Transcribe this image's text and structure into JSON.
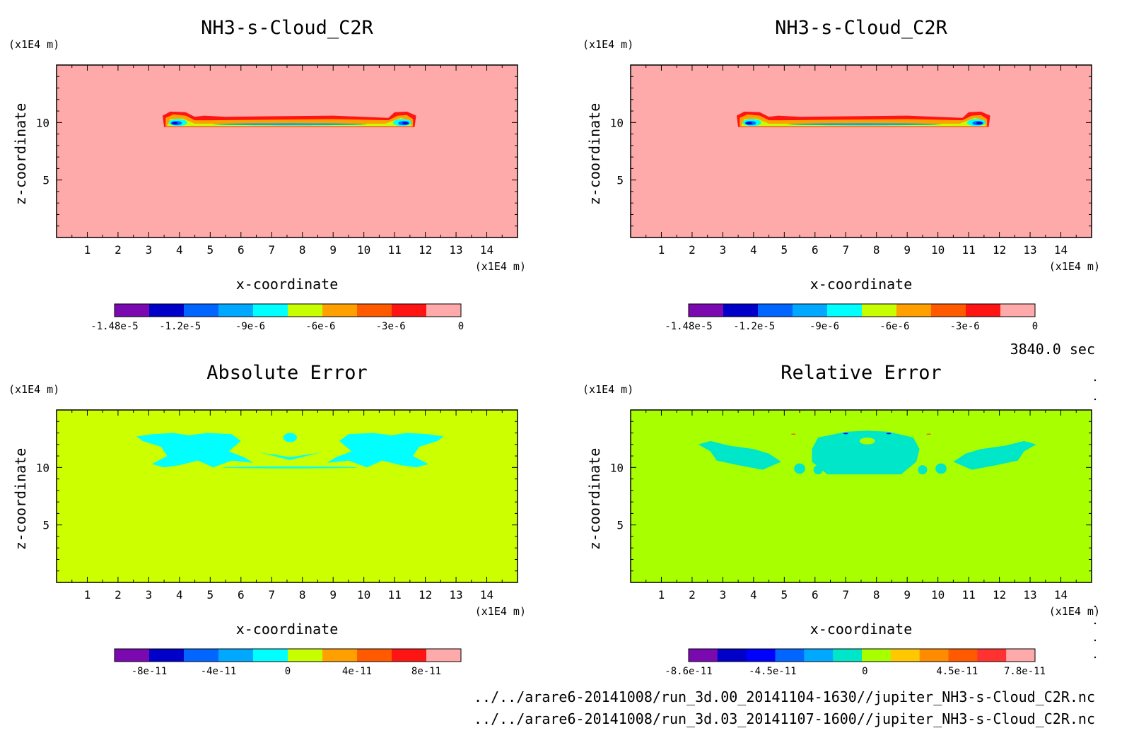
{
  "chart_data": [
    {
      "type": "heatmap",
      "title": "NH3-s-Cloud_C2R",
      "xlabel": "x-coordinate",
      "ylabel": "z-coordinate",
      "x_unit": "(x1E4 m)",
      "y_unit": "(x1E4 m)",
      "xlim": [
        0,
        15
      ],
      "ylim": [
        0,
        15
      ],
      "x_ticks": [
        "1",
        "2",
        "3",
        "4",
        "5",
        "6",
        "7",
        "8",
        "9",
        "10",
        "11",
        "12",
        "13",
        "14"
      ],
      "y_ticks": [
        "5",
        "10"
      ],
      "background_color": "#ffaaaa",
      "feature": "cloud",
      "colorbar": {
        "colors": [
          "#7a0ab0",
          "#0000c8",
          "#0066ff",
          "#00a8ff",
          "#00ffff",
          "#c8ff00",
          "#ffa000",
          "#ff5a00",
          "#ff1414",
          "#ffaaaa"
        ],
        "labels": [
          "-1.48e-5",
          "-1.2e-5",
          "-9e-6",
          "-6e-6",
          "-3e-6",
          "0"
        ],
        "label_values": [
          -1.48e-05,
          -1.2e-05,
          -9e-06,
          -6e-06,
          -3e-06,
          0
        ],
        "range": [
          -1.48e-05,
          0
        ]
      }
    },
    {
      "type": "heatmap",
      "title": "NH3-s-Cloud_C2R",
      "xlabel": "x-coordinate",
      "ylabel": "z-coordinate",
      "x_unit": "(x1E4 m)",
      "y_unit": "(x1E4 m)",
      "xlim": [
        0,
        15
      ],
      "ylim": [
        0,
        15
      ],
      "x_ticks": [
        "1",
        "2",
        "3",
        "4",
        "5",
        "6",
        "7",
        "8",
        "9",
        "10",
        "11",
        "12",
        "13",
        "14"
      ],
      "y_ticks": [
        "5",
        "10"
      ],
      "background_color": "#ffaaaa",
      "feature": "cloud",
      "colorbar": {
        "colors": [
          "#7a0ab0",
          "#0000c8",
          "#0066ff",
          "#00a8ff",
          "#00ffff",
          "#c8ff00",
          "#ffa000",
          "#ff5a00",
          "#ff1414",
          "#ffaaaa"
        ],
        "labels": [
          "-1.48e-5",
          "-1.2e-5",
          "-9e-6",
          "-6e-6",
          "-3e-6",
          "0"
        ],
        "label_values": [
          -1.48e-05,
          -1.2e-05,
          -9e-06,
          -6e-06,
          -3e-06,
          0
        ],
        "range": [
          -1.48e-05,
          0
        ]
      }
    },
    {
      "type": "heatmap",
      "title": "Absolute Error",
      "xlabel": "x-coordinate",
      "ylabel": "z-coordinate",
      "x_unit": "(x1E4 m)",
      "y_unit": "(x1E4 m)",
      "xlim": [
        0,
        15
      ],
      "ylim": [
        0,
        15
      ],
      "x_ticks": [
        "1",
        "2",
        "3",
        "4",
        "5",
        "6",
        "7",
        "8",
        "9",
        "10",
        "11",
        "12",
        "13",
        "14"
      ],
      "y_ticks": [
        "5",
        "10"
      ],
      "background_color": "#ccff00",
      "feature": "abs_error",
      "colorbar": {
        "colors": [
          "#7a0ab0",
          "#0000c8",
          "#0066ff",
          "#00a8ff",
          "#00ffff",
          "#c8ff00",
          "#ffa000",
          "#ff5a00",
          "#ff1414",
          "#ffaaaa"
        ],
        "labels": [
          "-8e-11",
          "-4e-11",
          "0",
          "4e-11",
          "8e-11"
        ],
        "label_values": [
          -8e-11,
          -4e-11,
          0,
          4e-11,
          8e-11
        ],
        "range": [
          -1e-10,
          1e-10
        ]
      }
    },
    {
      "type": "heatmap",
      "title": "Relative Error",
      "xlabel": "x-coordinate",
      "ylabel": "z-coordinate",
      "x_unit": "(x1E4 m)",
      "y_unit": "(x1E4 m)",
      "xlim": [
        0,
        15
      ],
      "ylim": [
        0,
        15
      ],
      "x_ticks": [
        "1",
        "2",
        "3",
        "4",
        "5",
        "6",
        "7",
        "8",
        "9",
        "10",
        "11",
        "12",
        "13",
        "14"
      ],
      "y_ticks": [
        "5",
        "10"
      ],
      "background_color": "#a8ff00",
      "feature": "rel_error",
      "colorbar": {
        "colors": [
          "#7a0ab0",
          "#0000c8",
          "#0000ff",
          "#0066ff",
          "#00a8ff",
          "#00e6c8",
          "#a8ff00",
          "#ffc800",
          "#ff8c00",
          "#ff5a00",
          "#ff3232",
          "#ffaaaa"
        ],
        "labels": [
          "-8.6e-11",
          "-4.5e-11",
          "0",
          "4.5e-11",
          "7.8e-11"
        ],
        "label_values": [
          -8.6e-11,
          -4.5e-11,
          0,
          4.5e-11,
          7.8e-11
        ],
        "range": [
          -8.6e-11,
          8.3e-11
        ]
      }
    }
  ],
  "time_label": "3840.0 sec",
  "file_paths": [
    "../../arare6-20141008/run_3d.00_20141104-1630//jupiter_NH3-s-Cloud_C2R.nc",
    "../../arare6-20141008/run_3d.03_20141107-1600//jupiter_NH3-s-Cloud_C2R.nc"
  ]
}
